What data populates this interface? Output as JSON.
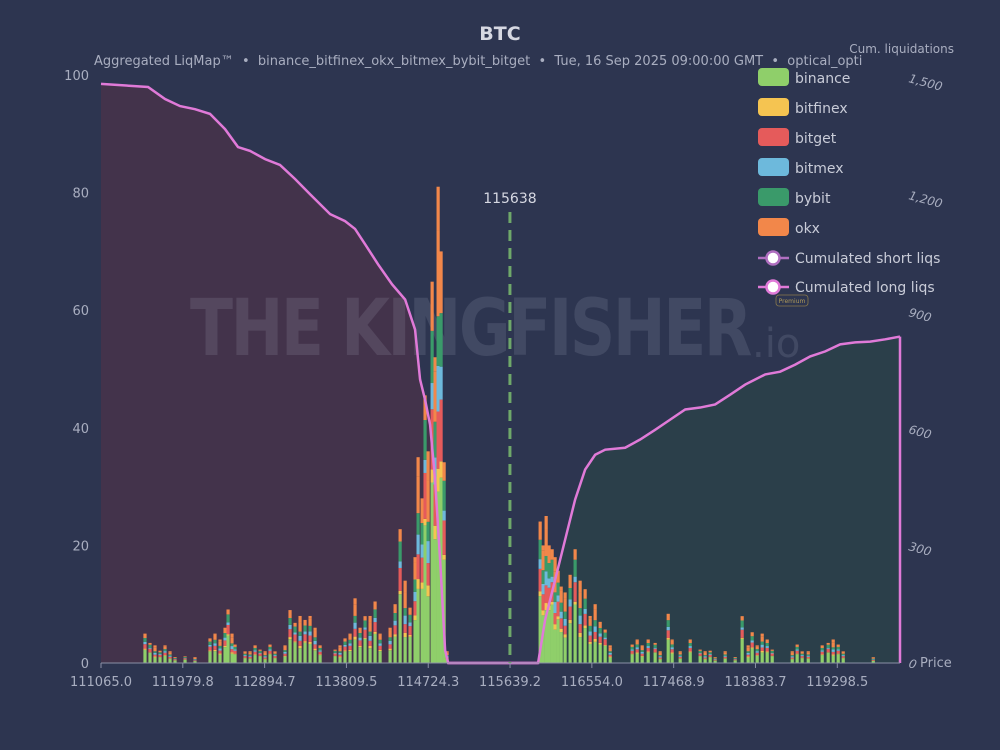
{
  "title": "BTC",
  "subtitle": "Aggregated LiqMap™  •  binance_bitfinex_okx_bitmex_bybit_bitget  •  Tue, 16 Sep 2025 09:00:00 GMT  •  optical_opti",
  "watermark": {
    "text": "THE KINGFISHER",
    "suffix": ".io",
    "badge": "Premium"
  },
  "colors": {
    "background": "#2d3550",
    "binance": "#8fcf6a",
    "bitfinex": "#f5c451",
    "bitget": "#e55b5b",
    "bitmex": "#6db9dc",
    "bybit": "#3a9a6a",
    "okx": "#f2874a",
    "short_curve": "#e07ad8",
    "long_curve": "#e07ad8",
    "short_legend": "#b06fc0",
    "long_legend": "#e07ad8",
    "short_fill": "#43334b",
    "long_fill": "#2b3f4a",
    "current_price_line": "#6fa86a"
  },
  "chart_data": {
    "type": "bar",
    "stacked": true,
    "title": "BTC",
    "xlabel": "Price",
    "ylabel": "",
    "y2label": "Cum. liquidations",
    "xlim": [
      111065,
      120000
    ],
    "ylim": [
      0,
      100
    ],
    "y2lim": [
      0,
      1500
    ],
    "x_ticks": [
      "111065.0",
      "111979.8",
      "112894.7",
      "113809.5",
      "114724.3",
      "115639.2",
      "116554.0",
      "117468.9",
      "118383.7",
      "119298.5"
    ],
    "y_ticks": [
      "0",
      "20",
      "40",
      "60",
      "80",
      "100"
    ],
    "y2_ticks": [
      "0",
      "300",
      "600",
      "900",
      "1,200",
      "1,500"
    ],
    "current_price": 115638,
    "current_price_label": "115638",
    "legend_position": "top-right",
    "exchanges": [
      "binance",
      "bitfinex",
      "bitget",
      "bitmex",
      "bybit",
      "okx"
    ],
    "exchange_share": {
      "binance": 0.45,
      "bitfinex": 0.04,
      "bitget": 0.15,
      "bitmex": 0.08,
      "bybit": 0.13,
      "okx": 0.15
    },
    "bins": [
      [
        111557,
        5
      ],
      [
        111613,
        3
      ],
      [
        111669,
        3
      ],
      [
        111725,
        2
      ],
      [
        111781,
        3
      ],
      [
        111837,
        2
      ],
      [
        111893,
        1
      ],
      [
        112005,
        1
      ],
      [
        112116,
        1
      ],
      [
        112284,
        4
      ],
      [
        112340,
        5
      ],
      [
        112396,
        4
      ],
      [
        112452,
        6
      ],
      [
        112486,
        8
      ],
      [
        112530,
        5
      ],
      [
        112564,
        3
      ],
      [
        112676,
        2
      ],
      [
        112732,
        2
      ],
      [
        112788,
        3
      ],
      [
        112844,
        2
      ],
      [
        112900,
        2
      ],
      [
        112955,
        3
      ],
      [
        113011,
        2
      ],
      [
        113123,
        3
      ],
      [
        113179,
        9
      ],
      [
        113235,
        6
      ],
      [
        113291,
        8
      ],
      [
        113347,
        7
      ],
      [
        113403,
        8
      ],
      [
        113459,
        6
      ],
      [
        113515,
        3
      ],
      [
        113683,
        2
      ],
      [
        113738,
        3
      ],
      [
        113794,
        4
      ],
      [
        113850,
        5
      ],
      [
        113906,
        11
      ],
      [
        113962,
        6
      ],
      [
        114018,
        7
      ],
      [
        114074,
        8
      ],
      [
        114130,
        10
      ],
      [
        114186,
        5
      ],
      [
        114298,
        6
      ],
      [
        114354,
        10
      ],
      [
        114410,
        20
      ],
      [
        114466,
        14
      ],
      [
        114521,
        9
      ],
      [
        114577,
        18
      ],
      [
        114611,
        35
      ],
      [
        114656,
        28
      ],
      [
        114689,
        40
      ],
      [
        114723,
        36
      ],
      [
        114768,
        62
      ],
      [
        114801,
        52
      ],
      [
        114835,
        81
      ],
      [
        114868,
        70
      ],
      [
        114902,
        30
      ],
      [
        114935,
        2
      ],
      [
        115976,
        23
      ],
      [
        116009,
        20
      ],
      [
        116043,
        25
      ],
      [
        116076,
        20
      ],
      [
        116110,
        17
      ],
      [
        116143,
        18
      ],
      [
        116177,
        15
      ],
      [
        116211,
        13
      ],
      [
        116255,
        12
      ],
      [
        116311,
        15
      ],
      [
        116367,
        17
      ],
      [
        116423,
        14
      ],
      [
        116479,
        12
      ],
      [
        116535,
        8
      ],
      [
        116591,
        10
      ],
      [
        116647,
        7
      ],
      [
        116703,
        5
      ],
      [
        116759,
        3
      ],
      [
        117005,
        3
      ],
      [
        117061,
        4
      ],
      [
        117117,
        3
      ],
      [
        117184,
        4
      ],
      [
        117262,
        3
      ],
      [
        117318,
        2
      ],
      [
        117408,
        8
      ],
      [
        117452,
        4
      ],
      [
        117542,
        2
      ],
      [
        117654,
        4
      ],
      [
        117765,
        2
      ],
      [
        117821,
        2
      ],
      [
        117877,
        2
      ],
      [
        117933,
        1
      ],
      [
        118045,
        2
      ],
      [
        118157,
        1
      ],
      [
        118235,
        7
      ],
      [
        118302,
        3
      ],
      [
        118347,
        5
      ],
      [
        118403,
        3
      ],
      [
        118459,
        5
      ],
      [
        118515,
        4
      ],
      [
        118571,
        2
      ],
      [
        118795,
        2
      ],
      [
        118850,
        3
      ],
      [
        118906,
        2
      ],
      [
        118974,
        2
      ],
      [
        119130,
        3
      ],
      [
        119197,
        3
      ],
      [
        119253,
        4
      ],
      [
        119309,
        3
      ],
      [
        119365,
        2
      ],
      [
        119701,
        1
      ]
    ],
    "series": [
      {
        "name": "Cumulated short liqs",
        "points": [
          [
            111065,
            1485
          ],
          [
            111591,
            1477
          ],
          [
            111781,
            1446
          ],
          [
            111949,
            1428
          ],
          [
            112116,
            1420
          ],
          [
            112284,
            1408
          ],
          [
            112452,
            1369
          ],
          [
            112597,
            1323
          ],
          [
            112732,
            1313
          ],
          [
            112900,
            1292
          ],
          [
            113067,
            1277
          ],
          [
            113235,
            1241
          ],
          [
            113403,
            1202
          ],
          [
            113627,
            1151
          ],
          [
            113794,
            1133
          ],
          [
            113906,
            1113
          ],
          [
            114018,
            1074
          ],
          [
            114164,
            1022
          ],
          [
            114320,
            971
          ],
          [
            114466,
            932
          ],
          [
            114577,
            855
          ],
          [
            114633,
            727
          ],
          [
            114689,
            675
          ],
          [
            114745,
            611
          ],
          [
            114801,
            470
          ],
          [
            114857,
            265
          ],
          [
            114913,
            33
          ],
          [
            114947,
            0
          ],
          [
            115953,
            0
          ]
        ]
      },
      {
        "name": "Cumulated long liqs",
        "points": [
          [
            114947,
            0
          ],
          [
            115953,
            0
          ],
          [
            116031,
            110
          ],
          [
            116143,
            213
          ],
          [
            116255,
            316
          ],
          [
            116367,
            419
          ],
          [
            116479,
            496
          ],
          [
            116591,
            534
          ],
          [
            116703,
            547
          ],
          [
            116926,
            552
          ],
          [
            117094,
            573
          ],
          [
            117262,
            598
          ],
          [
            117430,
            624
          ],
          [
            117598,
            650
          ],
          [
            117765,
            655
          ],
          [
            117933,
            663
          ],
          [
            118101,
            688
          ],
          [
            118269,
            714
          ],
          [
            118493,
            740
          ],
          [
            118660,
            747
          ],
          [
            118828,
            765
          ],
          [
            118996,
            786
          ],
          [
            119164,
            799
          ],
          [
            119331,
            817
          ],
          [
            119499,
            822
          ],
          [
            119667,
            824
          ],
          [
            119835,
            830
          ],
          [
            120000,
            837
          ]
        ]
      }
    ]
  }
}
